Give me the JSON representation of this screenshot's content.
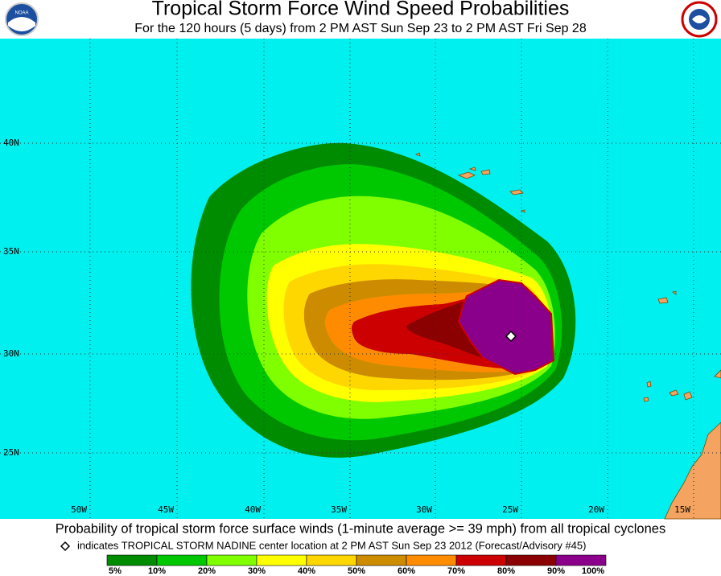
{
  "header": {
    "title": "Tropical Storm Force Wind Speed Probabilities",
    "subtitle": "For the 120 hours (5 days) from 2 PM AST Sun Sep 23 to 2 PM AST Fri Sep 28"
  },
  "map": {
    "lat_labels": [
      "40N",
      "35N",
      "30N",
      "25N"
    ],
    "lon_labels": [
      "50W",
      "45W",
      "40W",
      "35W",
      "30W",
      "25W",
      "20W",
      "15W"
    ]
  },
  "footer": {
    "caption": "Probability of tropical storm force surface winds (1-minute average >= 39 mph) from all tropical cyclones",
    "note": "indicates TROPICAL STORM NADINE center location at 2 PM AST Sun Sep 23 2012 (Forecast/Advisory #45)"
  },
  "legend": {
    "labels": [
      "5%",
      "10%",
      "20%",
      "30%",
      "40%",
      "50%",
      "60%",
      "70%",
      "80%",
      "90%",
      "100%"
    ],
    "colors": [
      "#008c00",
      "#00c800",
      "#7fff00",
      "#ffff00",
      "#ffd700",
      "#cd8c00",
      "#ff8c00",
      "#cc0000",
      "#8b0000",
      "#8b008b"
    ]
  }
}
